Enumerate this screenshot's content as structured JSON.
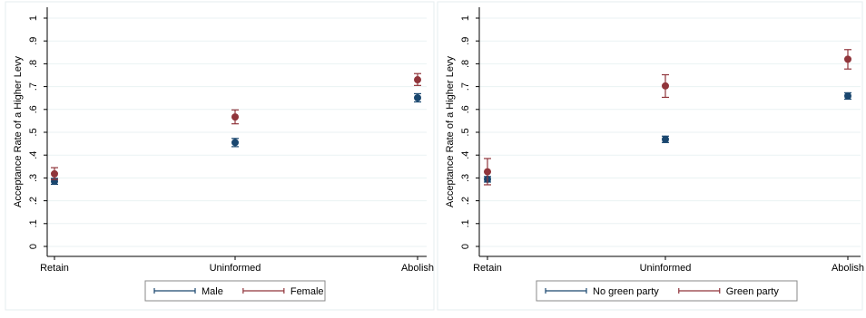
{
  "chart_data": [
    {
      "type": "scatter",
      "title": "",
      "ylabel": "Acceptance Rate of a Higher Levy",
      "xlabel": "",
      "ylim": [
        0,
        1
      ],
      "yticks": [
        "0",
        ".1",
        ".2",
        ".3",
        ".4",
        ".5",
        ".6",
        ".7",
        ".8",
        ".9",
        "1"
      ],
      "categories": [
        "Retain",
        "Uninformed",
        "Abolish"
      ],
      "grid": true,
      "legend_position": "bottom",
      "series": [
        {
          "name": "Male",
          "color": "#1a476f",
          "values": [
            0.285,
            0.455,
            0.651
          ],
          "ci_low": [
            0.272,
            0.437,
            0.633
          ],
          "ci_high": [
            0.298,
            0.473,
            0.669
          ]
        },
        {
          "name": "Female",
          "color": "#90353b",
          "values": [
            0.318,
            0.567,
            0.73
          ],
          "ci_low": [
            0.293,
            0.537,
            0.705
          ],
          "ci_high": [
            0.345,
            0.598,
            0.757
          ]
        }
      ]
    },
    {
      "type": "scatter",
      "title": "",
      "ylabel": "Acceptance Rate of a Higher Levy",
      "xlabel": "",
      "ylim": [
        0,
        1
      ],
      "yticks": [
        "0",
        ".1",
        ".2",
        ".3",
        ".4",
        ".5",
        ".6",
        ".7",
        ".8",
        ".9",
        "1"
      ],
      "categories": [
        "Retain",
        "Uninformed",
        "Abolish"
      ],
      "grid": true,
      "legend_position": "bottom",
      "series": [
        {
          "name": "No green party",
          "color": "#1a476f",
          "values": [
            0.294,
            0.469,
            0.659
          ],
          "ci_low": [
            0.282,
            0.455,
            0.645
          ],
          "ci_high": [
            0.306,
            0.483,
            0.673
          ]
        },
        {
          "name": "Green party",
          "color": "#90353b",
          "values": [
            0.327,
            0.703,
            0.82
          ],
          "ci_low": [
            0.27,
            0.653,
            0.777
          ],
          "ci_high": [
            0.385,
            0.752,
            0.862
          ]
        }
      ]
    }
  ]
}
